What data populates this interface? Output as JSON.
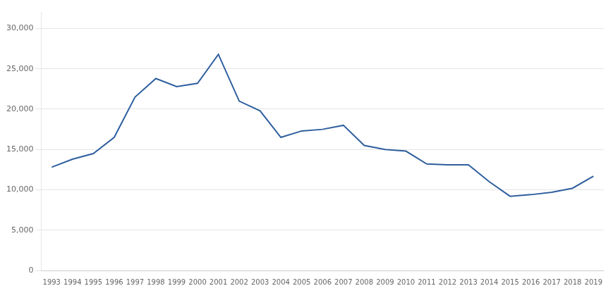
{
  "chart_data": {
    "type": "line",
    "x": [
      1993,
      1994,
      1995,
      1996,
      1997,
      1998,
      1999,
      2000,
      2001,
      2002,
      2003,
      2004,
      2005,
      2006,
      2007,
      2008,
      2009,
      2010,
      2011,
      2012,
      2013,
      2014,
      2015,
      2016,
      2017,
      2018,
      2019
    ],
    "values": [
      12800,
      13800,
      14500,
      16500,
      21500,
      23800,
      22800,
      23200,
      26800,
      21000,
      19800,
      16500,
      17300,
      17500,
      18000,
      15500,
      15000,
      14800,
      13200,
      13100,
      13100,
      11000,
      9200,
      9400,
      9700,
      10200,
      11700
    ],
    "color": "#2E5F9E",
    "xlim": [
      1992.5,
      2019.5
    ],
    "xticks": [
      1993,
      1994,
      1995,
      1996,
      1997,
      1998,
      1999,
      2000,
      2001,
      2002,
      2003,
      2004,
      2005,
      2006,
      2007,
      2008,
      2009,
      2010,
      2011,
      2012,
      2013,
      2014,
      2015,
      2016,
      2017,
      2018,
      2019
    ],
    "ylim": [
      0,
      32000
    ],
    "yticks": [
      0,
      {
        "value": 5000,
        "label": "5,000"
      },
      {
        "value": 10000,
        "label": "10,000"
      },
      {
        "value": 15000,
        "label": "15,000"
      },
      {
        "value": 20000,
        "label": "20,000"
      },
      {
        "value": 25000,
        "label": "25,000"
      },
      {
        "value": 30000,
        "label": "30,000"
      }
    ],
    "grid": true
  }
}
